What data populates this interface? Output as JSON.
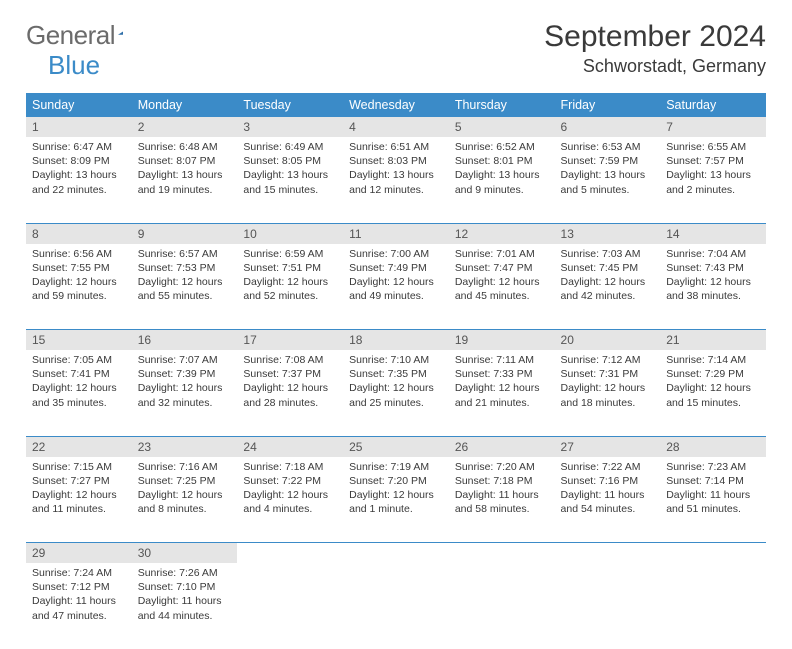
{
  "logo": {
    "text_gray": "General",
    "text_blue": "Blue",
    "triangle_color": "#2f6fa8"
  },
  "header": {
    "month_title": "September 2024",
    "location": "Schworstadt, Germany"
  },
  "colors": {
    "header_bg": "#3b8bc8",
    "header_text": "#ffffff",
    "daynum_bg": "#e5e5e5",
    "row_border": "#3b8bc8",
    "body_text": "#3a3a3a"
  },
  "weekdays": [
    "Sunday",
    "Monday",
    "Tuesday",
    "Wednesday",
    "Thursday",
    "Friday",
    "Saturday"
  ],
  "weeks": [
    [
      {
        "n": "1",
        "sr": "6:47 AM",
        "ss": "8:09 PM",
        "dl": "13 hours and 22 minutes."
      },
      {
        "n": "2",
        "sr": "6:48 AM",
        "ss": "8:07 PM",
        "dl": "13 hours and 19 minutes."
      },
      {
        "n": "3",
        "sr": "6:49 AM",
        "ss": "8:05 PM",
        "dl": "13 hours and 15 minutes."
      },
      {
        "n": "4",
        "sr": "6:51 AM",
        "ss": "8:03 PM",
        "dl": "13 hours and 12 minutes."
      },
      {
        "n": "5",
        "sr": "6:52 AM",
        "ss": "8:01 PM",
        "dl": "13 hours and 9 minutes."
      },
      {
        "n": "6",
        "sr": "6:53 AM",
        "ss": "7:59 PM",
        "dl": "13 hours and 5 minutes."
      },
      {
        "n": "7",
        "sr": "6:55 AM",
        "ss": "7:57 PM",
        "dl": "13 hours and 2 minutes."
      }
    ],
    [
      {
        "n": "8",
        "sr": "6:56 AM",
        "ss": "7:55 PM",
        "dl": "12 hours and 59 minutes."
      },
      {
        "n": "9",
        "sr": "6:57 AM",
        "ss": "7:53 PM",
        "dl": "12 hours and 55 minutes."
      },
      {
        "n": "10",
        "sr": "6:59 AM",
        "ss": "7:51 PM",
        "dl": "12 hours and 52 minutes."
      },
      {
        "n": "11",
        "sr": "7:00 AM",
        "ss": "7:49 PM",
        "dl": "12 hours and 49 minutes."
      },
      {
        "n": "12",
        "sr": "7:01 AM",
        "ss": "7:47 PM",
        "dl": "12 hours and 45 minutes."
      },
      {
        "n": "13",
        "sr": "7:03 AM",
        "ss": "7:45 PM",
        "dl": "12 hours and 42 minutes."
      },
      {
        "n": "14",
        "sr": "7:04 AM",
        "ss": "7:43 PM",
        "dl": "12 hours and 38 minutes."
      }
    ],
    [
      {
        "n": "15",
        "sr": "7:05 AM",
        "ss": "7:41 PM",
        "dl": "12 hours and 35 minutes."
      },
      {
        "n": "16",
        "sr": "7:07 AM",
        "ss": "7:39 PM",
        "dl": "12 hours and 32 minutes."
      },
      {
        "n": "17",
        "sr": "7:08 AM",
        "ss": "7:37 PM",
        "dl": "12 hours and 28 minutes."
      },
      {
        "n": "18",
        "sr": "7:10 AM",
        "ss": "7:35 PM",
        "dl": "12 hours and 25 minutes."
      },
      {
        "n": "19",
        "sr": "7:11 AM",
        "ss": "7:33 PM",
        "dl": "12 hours and 21 minutes."
      },
      {
        "n": "20",
        "sr": "7:12 AM",
        "ss": "7:31 PM",
        "dl": "12 hours and 18 minutes."
      },
      {
        "n": "21",
        "sr": "7:14 AM",
        "ss": "7:29 PM",
        "dl": "12 hours and 15 minutes."
      }
    ],
    [
      {
        "n": "22",
        "sr": "7:15 AM",
        "ss": "7:27 PM",
        "dl": "12 hours and 11 minutes."
      },
      {
        "n": "23",
        "sr": "7:16 AM",
        "ss": "7:25 PM",
        "dl": "12 hours and 8 minutes."
      },
      {
        "n": "24",
        "sr": "7:18 AM",
        "ss": "7:22 PM",
        "dl": "12 hours and 4 minutes."
      },
      {
        "n": "25",
        "sr": "7:19 AM",
        "ss": "7:20 PM",
        "dl": "12 hours and 1 minute."
      },
      {
        "n": "26",
        "sr": "7:20 AM",
        "ss": "7:18 PM",
        "dl": "11 hours and 58 minutes."
      },
      {
        "n": "27",
        "sr": "7:22 AM",
        "ss": "7:16 PM",
        "dl": "11 hours and 54 minutes."
      },
      {
        "n": "28",
        "sr": "7:23 AM",
        "ss": "7:14 PM",
        "dl": "11 hours and 51 minutes."
      }
    ],
    [
      {
        "n": "29",
        "sr": "7:24 AM",
        "ss": "7:12 PM",
        "dl": "11 hours and 47 minutes."
      },
      {
        "n": "30",
        "sr": "7:26 AM",
        "ss": "7:10 PM",
        "dl": "11 hours and 44 minutes."
      },
      null,
      null,
      null,
      null,
      null
    ]
  ],
  "labels": {
    "sunrise": "Sunrise:",
    "sunset": "Sunset:",
    "daylight": "Daylight:"
  }
}
